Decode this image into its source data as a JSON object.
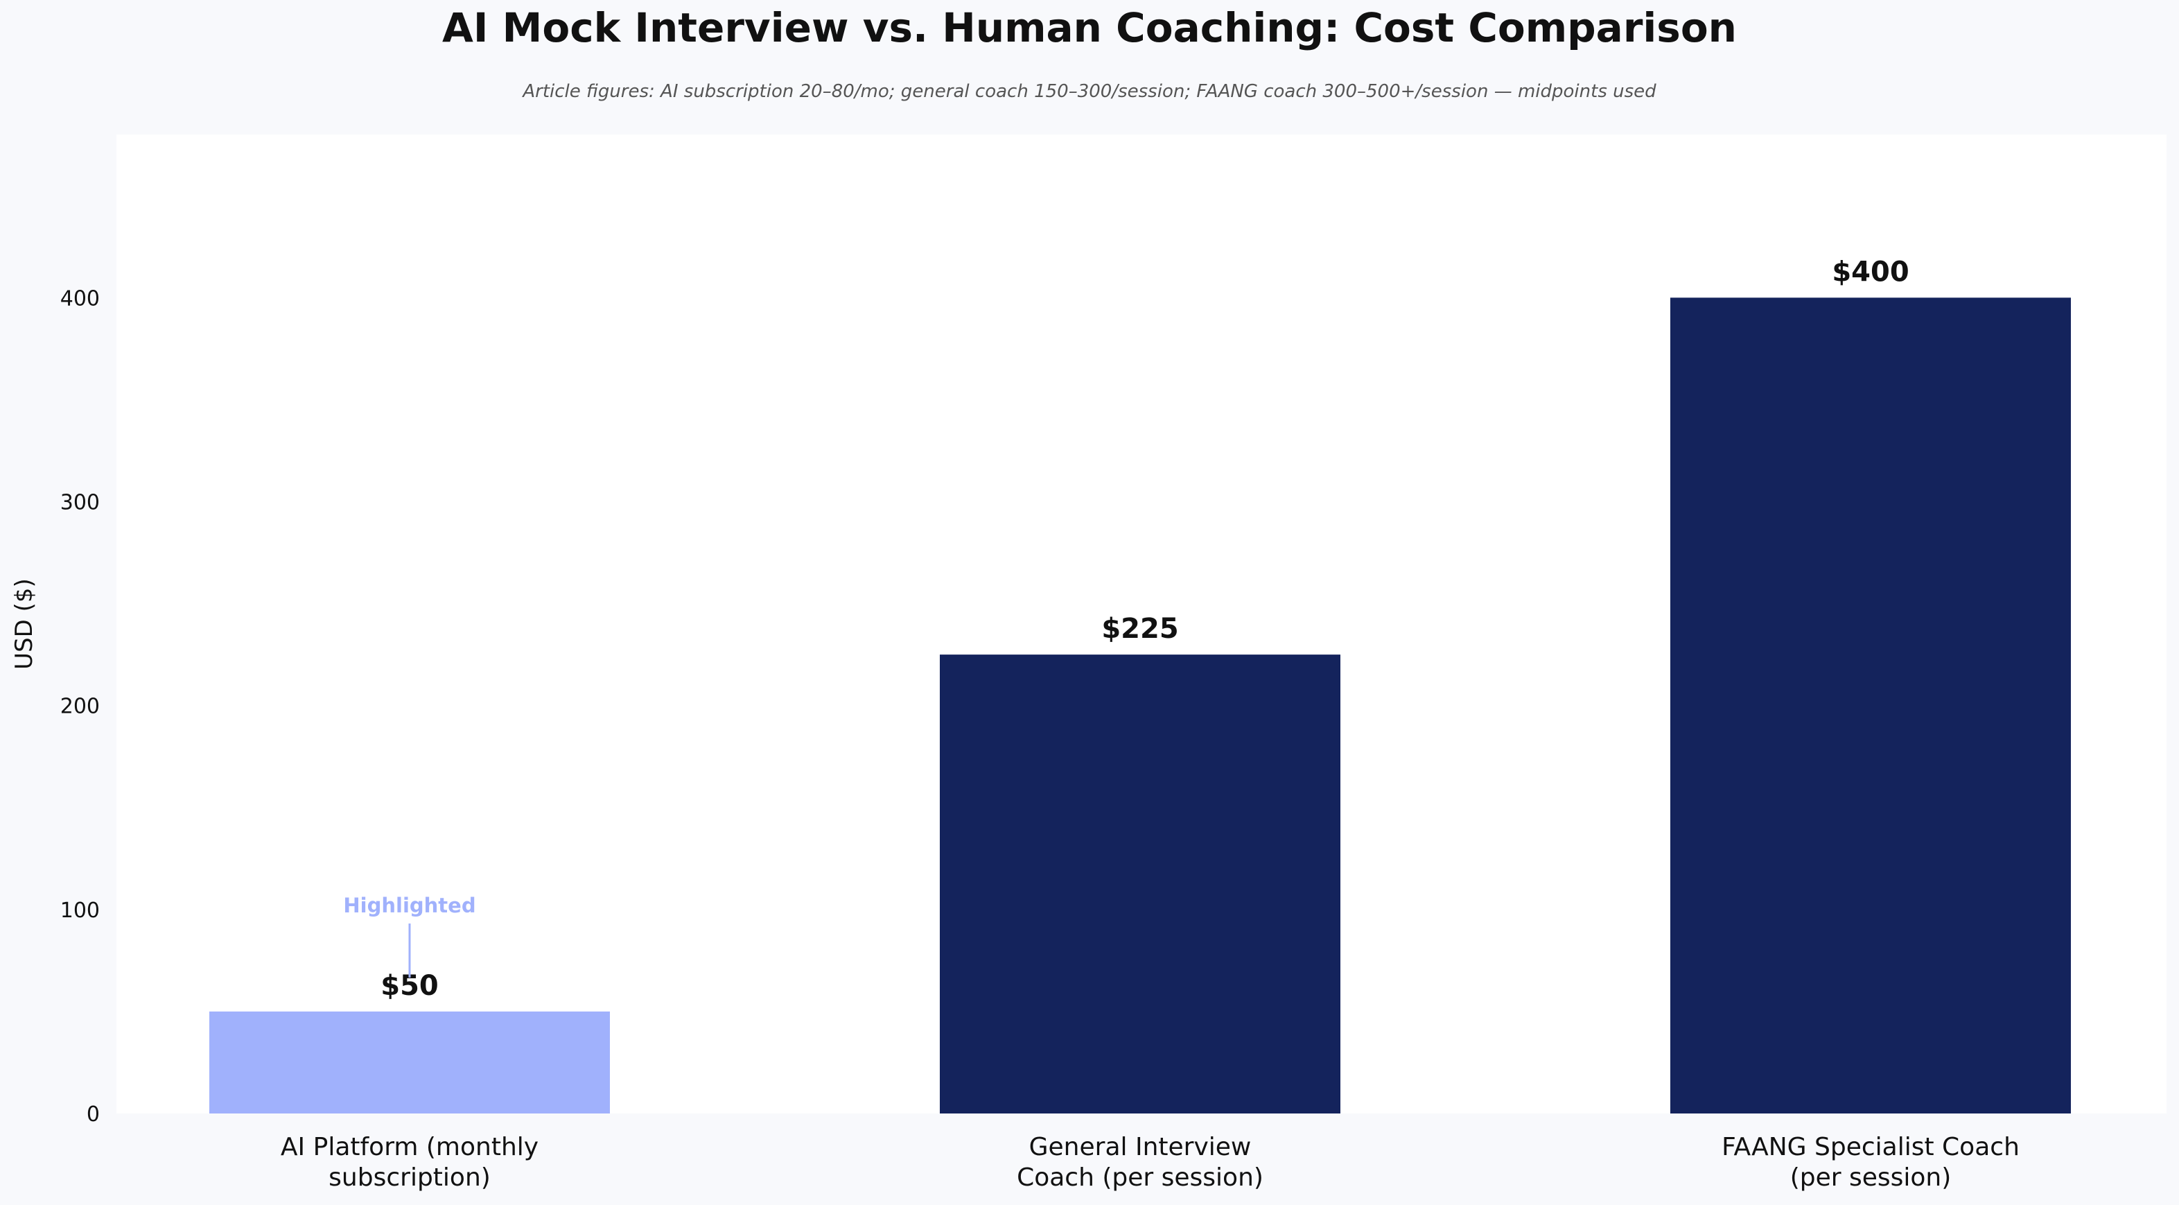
{
  "chart_data": {
    "type": "bar",
    "title": "AI Mock Interview vs. Human Coaching: Cost Comparison",
    "subtitle": "Article figures: AI subscription 20–80/mo; general coach 150–300/session; FAANG coach 300–500+/session — midpoints used",
    "ylabel": "USD ($)",
    "xlabel": "",
    "ylim": [
      0,
      480
    ],
    "yticks": [
      0,
      100,
      200,
      300,
      400
    ],
    "grid": false,
    "categories": [
      [
        "AI Platform (monthly",
        "subscription)"
      ],
      [
        "General Interview",
        "Coach (per session)"
      ],
      [
        "FAANG Specialist Coach",
        "(per session)"
      ]
    ],
    "values": [
      50,
      225,
      400
    ],
    "value_labels": [
      "$50",
      "$225",
      "$400"
    ],
    "highlight_index": 0,
    "annotation": {
      "text": "Highlighted",
      "target_index": 0
    },
    "colors": {
      "highlight": "#a0b1fc",
      "bar": "#14235c",
      "annotation": "#a0b1fc",
      "background": "#f8f9fc",
      "plot_bg": "#ffffff",
      "text": "#111111",
      "subtitle": "#555555"
    }
  }
}
